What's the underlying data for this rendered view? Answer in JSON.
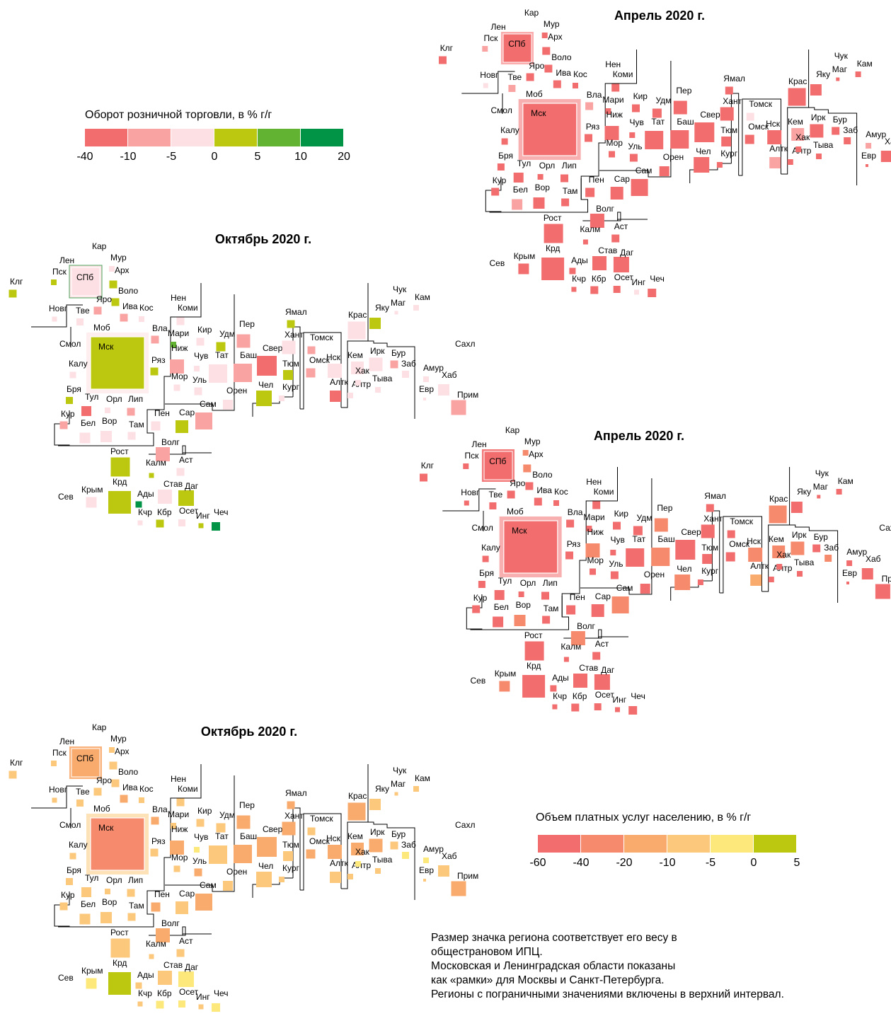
{
  "chart_data": [
    {
      "type": "tile-map",
      "title": "Апрель 2020 г.",
      "indicator": "retail",
      "colors": {
        "Мск": "#f26d6d",
        "СПб": "#f26d6d",
        "Мур": "#f26d6d",
        "Кар": "#f26d6d",
        "Арх": "#f26d6d",
        "Воло": "#f26d6d",
        "Клг": "#f26d6d",
        "Пск": "#f9a3a3",
        "Новг": "#fde0e4",
        "Тве": "#f9a3a3",
        "Яро": "#f26d6d",
        "Ива": "#f26d6d",
        "Кос": "#f26d6d",
        "Моб": "#f26d6d",
        "Нен": "#fde0e4",
        "Коми": "#f26d6d",
        "Вла": "#f9a3a3",
        "Ряз": "#f26d6d",
        "Смол": "#f26d6d",
        "Калу": "#f26d6d",
        "Бря": "#f26d6d",
        "Тул": "#f26d6d",
        "Орл": "#f26d6d",
        "Лип": "#f26d6d",
        "Кур": "#f26d6d",
        "Бел": "#f9a3a3",
        "Вор": "#f26d6d",
        "Там": "#f26d6d",
        "Мари": "#f26d6d",
        "Кир": "#f26d6d",
        "Удм": "#f26d6d",
        "Ниж": "#f26d6d",
        "Чув": "#f26d6d",
        "Тат": "#f26d6d",
        "Мор": "#f26d6d",
        "Уль": "#f26d6d",
        "Пен": "#f26d6d",
        "Сар": "#f26d6d",
        "Сам": "#f26d6d",
        "Пер": "#f26d6d",
        "Баш": "#f26d6d",
        "Орен": "#f26d6d",
        "Свер": "#f26d6d",
        "Чел": "#f26d6d",
        "Тюм": "#f26d6d",
        "Кург": "#f26d6d",
        "Ямал": "#f26d6d",
        "Хант": "#f26d6d",
        "Томск": "#fde0e4",
        "Омск": "#f26d6d",
        "Нск": "#f26d6d",
        "Кем": "#f9a3a3",
        "Алтк": "#f9a3a3",
        "Алтр": "#f26d6d",
        "Крас": "#f26d6d",
        "Хак": "#f26d6d",
        "Тыва": "#f26d6d",
        "Иркр": "#f26d6d",
        "Бур": "#f26d6d",
        "Заб": "#f26d6d",
        "Яку": "#f26d6d",
        "Чук": "#f26d6d",
        "Маг": "#f26d6d",
        "Кам": "#f26d6d",
        "Амур": "#f9a3a3",
        "Евр": "#f26d6d",
        "Хаб": "#f26d6d",
        "Прим": "#f26d6d",
        "Сахл": "#f26d6d",
        "Рост": "#f26d6d",
        "Волг": "#f26d6d",
        "Калм": "#f26d6d",
        "Аст": "#f26d6d",
        "Крд": "#f26d6d",
        "Крым": "#f26d6d",
        "Сев": "#f26d6d",
        "Ады": "#f26d6d",
        "Став": "#f26d6d",
        "Даг": "#f26d6d",
        "Кчр": "#f26d6d",
        "Кбр": "#f26d6d",
        "Осет": "#f26d6d",
        "Инг": "#fde0e4",
        "Чеч": "#f26d6d",
        "Лен": "#f9a3a3"
      }
    },
    {
      "type": "tile-map",
      "title": "Октябрь 2020 г.",
      "indicator": "retail",
      "colors": {
        "Мск": "#bcc80f",
        "СПб": "#fde0e4",
        "Мур": "#fde0e4",
        "Кар": "#fde0e4",
        "Арх": "#bcc80f",
        "Воло": "#bcc80f",
        "Клг": "#bcc80f",
        "Пск": "#bcc80f",
        "Новг": "#fde0e4",
        "Тве": "#fde0e4",
        "Яро": "#f9a3a3",
        "Ива": "#f9a3a3",
        "Кос": "#fde0e4",
        "Моб": "#fde0e4",
        "Нен": "#fde0e4",
        "Коми": "#fde0e4",
        "Вла": "#f9a3a3",
        "Ряз": "#bcc80f",
        "Смол": "#fde0e4",
        "Калу": "#fde0e4",
        "Бря": "#bcc80f",
        "Тул": "#f26d6d",
        "Орл": "#fde0e4",
        "Лип": "#f9a3a3",
        "Кур": "#f9a3a3",
        "Бел": "#fde0e4",
        "Вор": "#fde0e4",
        "Там": "#fde0e4",
        "Мари": "#62b332",
        "Кир": "#fde0e4",
        "Удм": "#bcc80f",
        "Ниж": "#f9a3a3",
        "Чув": "#fde0e4",
        "Тат": "#fde0e4",
        "Мор": "#fde0e4",
        "Уль": "#fde0e4",
        "Пен": "#fde0e4",
        "Сар": "#bcc80f",
        "Сам": "#f9a3a3",
        "Пер": "#f9a3a3",
        "Баш": "#f9a3a3",
        "Орен": "#fde0e4",
        "Свер": "#f26d6d",
        "Чел": "#bcc80f",
        "Тюм": "#bcc80f",
        "Кург": "#fde0e4",
        "Ямал": "#bcc80f",
        "Хант": "#fde0e4",
        "Томск": "#f9a3a3",
        "Омск": "#f9a3a3",
        "Нск": "#fde0e4",
        "Кем": "#fde0e4",
        "Алтк": "#f26d6d",
        "Алтр": "#fde0e4",
        "Крас": "#fde0e4",
        "Хак": "#fde0e4",
        "Тыва": "#fde0e4",
        "Иркр": "#fde0e4",
        "Бур": "#f9a3a3",
        "Заб": "#fde0e4",
        "Яку": "#bcc80f",
        "Чук": "#bcc80f",
        "Маг": "#fde0e4",
        "Кам": "#fde0e4",
        "Амур": "#fde0e4",
        "Евр": "#fde0e4",
        "Хаб": "#fde0e4",
        "Прим": "#f9a3a3",
        "Сахл": "#fde0e4",
        "Рост": "#bcc80f",
        "Волг": "#f9a3a3",
        "Калм": "#bcc80f",
        "Аст": "#fde0e4",
        "Крд": "#bcc80f",
        "Крым": "#fde0e4",
        "Сев": "#fde0e4",
        "Ады": "#019447",
        "Став": "#fde0e4",
        "Даг": "#bcc80f",
        "Кчр": "#fde0e4",
        "Кбр": "#bcc80f",
        "Осет": "#fde0e4",
        "Инг": "#bcc80f",
        "Чеч": "#019447",
        "Лен": "#fde0e4"
      }
    },
    {
      "type": "tile-map",
      "title": "Апрель 2020 г.",
      "indicator": "services",
      "colors": {
        "Мск": "#f26d6d",
        "СПб": "#f26d6d",
        "Мур": "#f68a6c",
        "Кар": "#f26d6d",
        "Арх": "#f68a6c",
        "Воло": "#f26d6d",
        "Клг": "#f26d6d",
        "Пск": "#f26d6d",
        "Новг": "#f26d6d",
        "Тве": "#f26d6d",
        "Яро": "#f26d6d",
        "Ива": "#f26d6d",
        "Кос": "#f26d6d",
        "Моб": "#f26d6d",
        "Нен": "#f26d6d",
        "Коми": "#f26d6d",
        "Вла": "#f26d6d",
        "Ряз": "#f26d6d",
        "Смол": "#f26d6d",
        "Калу": "#f26d6d",
        "Бря": "#f26d6d",
        "Тул": "#f26d6d",
        "Орл": "#f26d6d",
        "Лип": "#f26d6d",
        "Кур": "#f26d6d",
        "Бел": "#f26d6d",
        "Вор": "#f68a6c",
        "Там": "#f26d6d",
        "Мари": "#f26d6d",
        "Кир": "#f26d6d",
        "Удм": "#f26d6d",
        "Ниж": "#f68a6c",
        "Чув": "#f26d6d",
        "Тат": "#f26d6d",
        "Мор": "#f26d6d",
        "Уль": "#f26d6d",
        "Пен": "#f26d6d",
        "Сар": "#f26d6d",
        "Сам": "#f68a6c",
        "Пер": "#f68a6c",
        "Баш": "#f68a6c",
        "Орен": "#f26d6d",
        "Свер": "#f26d6d",
        "Чел": "#f68a6c",
        "Тюм": "#f26d6d",
        "Кург": "#f26d6d",
        "Ямал": "#f26d6d",
        "Хант": "#f26d6d",
        "Томск": "#f26d6d",
        "Омск": "#f26d6d",
        "Нск": "#f68a6c",
        "Кем": "#f68a6c",
        "Алтк": "#f9ab6e",
        "Алтр": "#f26d6d",
        "Крас": "#f68a6c",
        "Хак": "#f26d6d",
        "Тыва": "#f26d6d",
        "Иркр": "#f68a6c",
        "Бур": "#f26d6d",
        "Заб": "#f68a6c",
        "Яку": "#f26d6d",
        "Чук": "#f68a6c",
        "Маг": "#f26d6d",
        "Кам": "#f26d6d",
        "Амур": "#f26d6d",
        "Евр": "#f26d6d",
        "Хаб": "#f26d6d",
        "Прим": "#f26d6d",
        "Сахл": "#f26d6d",
        "Рост": "#f26d6d",
        "Волг": "#f68a6c",
        "Калм": "#f26d6d",
        "Аст": "#f26d6d",
        "Крд": "#f26d6d",
        "Крым": "#f68a6c",
        "Сев": "#f68a6c",
        "Ады": "#f26d6d",
        "Став": "#f26d6d",
        "Даг": "#f26d6d",
        "Кчр": "#f26d6d",
        "Кбр": "#f26d6d",
        "Осет": "#f26d6d",
        "Инг": "#f26d6d",
        "Чеч": "#f26d6d",
        "Лен": "#f26d6d"
      }
    },
    {
      "type": "tile-map",
      "title": "Октябрь 2020 г.",
      "indicator": "services",
      "colors": {
        "Мск": "#f68a6c",
        "СПб": "#f9ab6e",
        "Мур": "#fcc97c",
        "Кар": "#f9ab6e",
        "Арх": "#fcc97c",
        "Воло": "#fcc97c",
        "Клг": "#fcc97c",
        "Пск": "#fcc97c",
        "Новг": "#fcc97c",
        "Тве": "#fcc97c",
        "Яро": "#fcc97c",
        "Ива": "#f9ab6e",
        "Кос": "#fcc97c",
        "Моб": "#fcc97c",
        "Нен": "#fcc97c",
        "Коми": "#fcc97c",
        "Вла": "#f9ab6e",
        "Ряз": "#fcc97c",
        "Смол": "#fcc97c",
        "Калу": "#fcc97c",
        "Бря": "#fcc97c",
        "Тул": "#fcc97c",
        "Орл": "#fcc97c",
        "Лип": "#fcc97c",
        "Кур": "#fcc97c",
        "Бел": "#fcc97c",
        "Вор": "#fcc97c",
        "Там": "#fcc97c",
        "Мари": "#fcc97c",
        "Кир": "#fcc97c",
        "Удм": "#fcc97c",
        "Ниж": "#f9ab6e",
        "Чув": "#fce87b",
        "Тат": "#fcc97c",
        "Мор": "#fcc97c",
        "Уль": "#f9ab6e",
        "Пен": "#f9ab6e",
        "Сар": "#fcc97c",
        "Сам": "#f9ab6e",
        "Пер": "#f9ab6e",
        "Баш": "#f9ab6e",
        "Орен": "#fcc97c",
        "Свер": "#f9ab6e",
        "Чел": "#fcc97c",
        "Тюм": "#fcc97c",
        "Кург": "#fcc97c",
        "Ямал": "#f9ab6e",
        "Хант": "#f9ab6e",
        "Томск": "#fcc97c",
        "Омск": "#f9ab6e",
        "Нск": "#f9ab6e",
        "Кем": "#f9ab6e",
        "Алтк": "#fcc97c",
        "Алтр": "#fcc97c",
        "Крас": "#f9ab6e",
        "Хак": "#fce87b",
        "Тыва": "#fcc97c",
        "Иркр": "#f9ab6e",
        "Бур": "#fcc97c",
        "Заб": "#fce87b",
        "Яку": "#fcc97c",
        "Чук": "#fcc97c",
        "Маг": "#fcc97c",
        "Кам": "#fcc97c",
        "Амур": "#fce87b",
        "Евр": "#fcc97c",
        "Хаб": "#fcc97c",
        "Прим": "#f9ab6e",
        "Сахл": "#fcc97c",
        "Рост": "#fcc97c",
        "Волг": "#f9ab6e",
        "Калм": "#fcc97c",
        "Аст": "#fcc97c",
        "Крд": "#bcc80f",
        "Крым": "#fce87b",
        "Сев": "#fce87b",
        "Ады": "#fcc97c",
        "Став": "#fcc97c",
        "Даг": "#fce87b",
        "Кчр": "#fcc97c",
        "Кбр": "#fce87b",
        "Осет": "#fce87b",
        "Инг": "#fcc97c",
        "Чеч": "#fce87b",
        "Лен": "#f9ab6e"
      }
    }
  ],
  "legends": {
    "retail": {
      "title": "Оборот розничной торговли, в % г/г",
      "ticks": [
        "-40",
        "-10",
        "-5",
        "0",
        "5",
        "10",
        "20"
      ],
      "colors": [
        "#f26d6d",
        "#f9a3a3",
        "#fde0e4",
        "#bcc80f",
        "#62b332",
        "#019447"
      ]
    },
    "services": {
      "title": "Объем платных услуг населению, в % г/г",
      "ticks": [
        "-60",
        "-40",
        "-20",
        "-10",
        "-5",
        "0",
        "5"
      ],
      "colors": [
        "#f26d6d",
        "#f68a6c",
        "#f9ab6e",
        "#fcc97c",
        "#fce87b",
        "#bcc80f"
      ]
    }
  },
  "note": [
    "Размер значка региона соответствует его весу в",
    "общестрановом ИПЦ.",
    "Московская и Ленинградская области показаны",
    "как «рамки» для Москвы и Санкт-Петербурга.",
    "Регионы с пограничными значениями включены в верхний интервал."
  ]
}
